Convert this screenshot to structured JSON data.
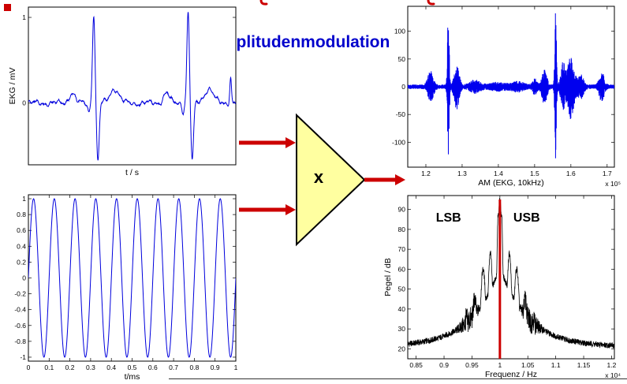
{
  "title": {
    "text": "Amplitudenmodulation"
  },
  "multiplier": {
    "label": "x"
  },
  "colors": {
    "accent_blue": "#0000cc",
    "signal_blue": "#0000dd",
    "arrow_red": "#cc0000",
    "multiplier_fill": "#ffffa0",
    "spectrum_black": "#000000"
  },
  "chart_data": [
    {
      "id": "ekg",
      "type": "line",
      "xlabel": "t / s",
      "ylabel": "EKG / mV",
      "xlim": [
        0,
        1
      ],
      "ylim": [
        -0.72,
        1.12
      ],
      "xticks": [],
      "xtick_labels": [],
      "yticks": [
        0,
        1
      ],
      "ytick_labels": [
        "0",
        "1"
      ],
      "line_color": "#0000dd",
      "generator": "ekg",
      "params": {
        "beats": [
          0.315,
          0.77
        ],
        "p_amp": 0.12,
        "q_amp": -0.1,
        "r_amp": 1.05,
        "s_amp": -0.68,
        "t_amp": 0.17,
        "noise": 0.02,
        "extra": [
          {
            "c": 0.975,
            "a": 0.3,
            "w": 0.006
          }
        ]
      }
    },
    {
      "id": "carrier",
      "type": "line",
      "xlabel": "t/ms",
      "ylabel": "",
      "xlim": [
        0,
        1
      ],
      "ylim": [
        -1.05,
        1.05
      ],
      "xticks": [
        0,
        0.1,
        0.2,
        0.3,
        0.4,
        0.5,
        0.6,
        0.7,
        0.8,
        0.9,
        1
      ],
      "xtick_labels": [
        "0",
        "0.1",
        "0.2",
        "0.3",
        "0.4",
        "0.5",
        "0.6",
        "0.7",
        "0.8",
        "0.9",
        "1"
      ],
      "yticks": [
        1,
        0.8,
        0.6,
        0.4,
        0.2,
        0,
        -0.2,
        -0.4,
        -0.6,
        -0.8,
        -1
      ],
      "ytick_labels": [
        "1",
        "0.8",
        "0.6",
        "0.4",
        "0.2",
        "0",
        "-0.2",
        "-0.4",
        "-0.6",
        "-0.8",
        "-1"
      ],
      "line_color": "#0000dd",
      "generator": "sine",
      "params": {
        "cycles": 10,
        "amplitude": 1
      }
    },
    {
      "id": "am",
      "type": "line",
      "xlabel": "AM (EKG, 10kHz)",
      "ylabel": "",
      "exp_label": "x 10⁵",
      "xlim": [
        1.15,
        1.72
      ],
      "ylim": [
        -145,
        145
      ],
      "xticks": [
        1.2,
        1.3,
        1.4,
        1.5,
        1.6,
        1.7
      ],
      "xtick_labels": [
        "1.2",
        "1.3",
        "1.4",
        "1.5",
        "1.6",
        "1.7"
      ],
      "yticks": [
        100,
        50,
        0,
        -50,
        -100
      ],
      "ytick_labels": [
        "100",
        "50",
        "0",
        "-50",
        "-100"
      ],
      "line_color": "#0000ee",
      "generator": "am",
      "params": {
        "base": 4,
        "bursts": [
          {
            "c": 1.213,
            "a": 26,
            "w": 0.01
          },
          {
            "c": 1.262,
            "a": 138,
            "w": 0.0032
          },
          {
            "c": 1.285,
            "a": 38,
            "w": 0.009
          },
          {
            "c": 1.335,
            "a": 9,
            "w": 0.018
          },
          {
            "c": 1.4,
            "a": 5,
            "w": 0.03
          },
          {
            "c": 1.455,
            "a": 7,
            "w": 0.02
          },
          {
            "c": 1.5,
            "a": 12,
            "w": 0.008
          },
          {
            "c": 1.527,
            "a": 30,
            "w": 0.009
          },
          {
            "c": 1.558,
            "a": 138,
            "w": 0.0032
          },
          {
            "c": 1.578,
            "a": 40,
            "w": 0.008
          },
          {
            "c": 1.6,
            "a": 55,
            "w": 0.012
          },
          {
            "c": 1.627,
            "a": 20,
            "w": 0.01
          },
          {
            "c": 1.685,
            "a": 24,
            "w": 0.009
          }
        ]
      }
    },
    {
      "id": "spectrum",
      "type": "line",
      "xlabel": "Frequenz / Hz",
      "ylabel": "Pegel / dB",
      "exp_label": "x 10⁴",
      "xlim": [
        0.835,
        1.205
      ],
      "ylim": [
        15,
        97
      ],
      "xticks": [
        0.85,
        0.9,
        0.95,
        1,
        1.05,
        1.1,
        1.15,
        1.2
      ],
      "xtick_labels": [
        "0.85",
        "0.9",
        "0.95",
        "1",
        "1.05",
        "1.1",
        "1.15",
        "1.2"
      ],
      "yticks": [
        20,
        30,
        40,
        50,
        60,
        70,
        80,
        90
      ],
      "ytick_labels": [
        "20",
        "30",
        "40",
        "50",
        "60",
        "70",
        "80",
        "90"
      ],
      "line_color": "#000000",
      "generator": "spectrum",
      "params": {
        "center": 1.0,
        "tail_base": 21,
        "tail_amp": 40,
        "tail_decay": 0.05,
        "comps": [
          {
            "c": 1.0,
            "a": 95,
            "w": 0.007
          },
          {
            "c": 0.997,
            "a": 88,
            "w": 0.004
          },
          {
            "c": 1.003,
            "a": 88,
            "w": 0.004
          },
          {
            "c": 0.983,
            "a": 68,
            "w": 0.007
          },
          {
            "c": 1.017,
            "a": 68,
            "w": 0.007
          },
          {
            "c": 0.97,
            "a": 60,
            "w": 0.008
          },
          {
            "c": 1.03,
            "a": 60,
            "w": 0.008
          },
          {
            "c": 0.955,
            "a": 45,
            "w": 0.008
          },
          {
            "c": 1.045,
            "a": 45,
            "w": 0.008
          },
          {
            "c": 0.94,
            "a": 35,
            "w": 0.01
          },
          {
            "c": 1.06,
            "a": 35,
            "w": 0.01
          }
        ],
        "noise_base": 1.5,
        "noise_bumps": [
          {
            "c": 0.945,
            "a": 5,
            "w": 0.015
          },
          {
            "c": 1.055,
            "a": 5,
            "w": 0.015
          }
        ]
      },
      "vline": {
        "x": 1.0,
        "y0": 15,
        "y1": 95,
        "color": "#cc0000",
        "width": 3
      },
      "annotations": [
        {
          "text": "LSB",
          "x": 0.908,
          "y": 84,
          "color": "#0000dd",
          "size": 16
        },
        {
          "text": "USB",
          "x": 1.048,
          "y": 84,
          "color": "#0000dd",
          "size": 16
        }
      ]
    }
  ]
}
